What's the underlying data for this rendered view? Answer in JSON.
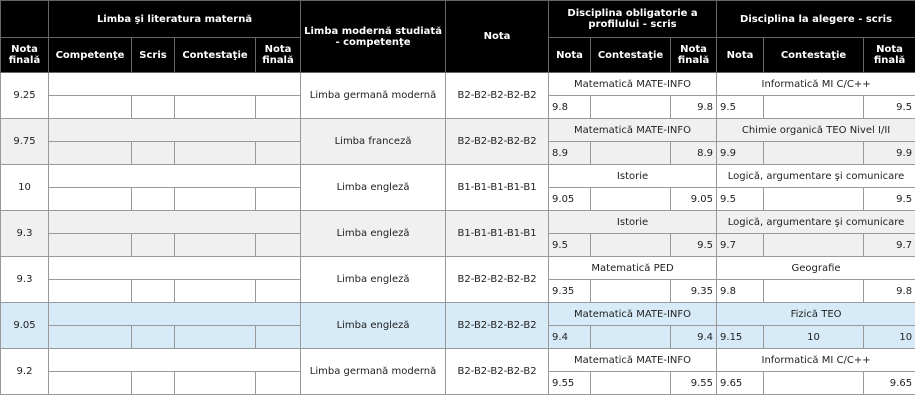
{
  "table": {
    "header": {
      "nota_finala": "Nota finală",
      "materna": "Limba şi literatura maternă",
      "materna_cols": [
        "Competenţe",
        "Scris",
        "Contestaţie",
        "Nota finală"
      ],
      "moderna": "Limba modernă studiată - competenţe",
      "nota": "Nota",
      "obligatorie": "Disciplina obligatorie a profilului - scris",
      "obligatorie_cols": [
        "Nota",
        "Contestaţie",
        "Nota finală"
      ],
      "alegere": "Disciplina la alegere - scris",
      "alegere_cols": [
        "Nota",
        "Contestaţie",
        "Nota finală"
      ]
    },
    "rows": [
      {
        "nota_finala": "9.25",
        "moderna": "Limba germană modernă",
        "nota": "B2-B2-B2-B2-B2",
        "obligatorie": {
          "subject": "Matematică MATE-INFO",
          "nota": "9.8",
          "nota_finala": "9.8"
        },
        "alegere": {
          "subject": "Informatică MI C/C++",
          "nota": "9.5",
          "nota_finala": "9.5"
        }
      },
      {
        "nota_finala": "9.75",
        "moderna": "Limba franceză",
        "nota": "B2-B2-B2-B2-B2",
        "obligatorie": {
          "subject": "Matematică MATE-INFO",
          "nota": "8.9",
          "nota_finala": "8.9"
        },
        "alegere": {
          "subject": "Chimie organică TEO Nivel I/II",
          "nota": "9.9",
          "nota_finala": "9.9"
        }
      },
      {
        "nota_finala": "10",
        "moderna": "Limba engleză",
        "nota": "B1-B1-B1-B1-B1",
        "obligatorie": {
          "subject": "Istorie",
          "nota": "9.05",
          "nota_finala": "9.05"
        },
        "alegere": {
          "subject": "Logică, argumentare şi comunicare",
          "nota": "9.5",
          "nota_finala": "9.5"
        }
      },
      {
        "nota_finala": "9.3",
        "moderna": "Limba engleză",
        "nota": "B1-B1-B1-B1-B1",
        "obligatorie": {
          "subject": "Istorie",
          "nota": "9.5",
          "nota_finala": "9.5"
        },
        "alegere": {
          "subject": "Logică, argumentare şi comunicare",
          "nota": "9.7",
          "nota_finala": "9.7"
        }
      },
      {
        "nota_finala": "9.3",
        "moderna": "Limba engleză",
        "nota": "B2-B2-B2-B2-B2",
        "obligatorie": {
          "subject": "Matematică PED",
          "nota": "9.35",
          "nota_finala": "9.35"
        },
        "alegere": {
          "subject": "Geografie",
          "nota": "9.8",
          "nota_finala": "9.8"
        }
      },
      {
        "nota_finala": "9.05",
        "moderna": "Limba engleză",
        "nota": "B2-B2-B2-B2-B2",
        "obligatorie": {
          "subject": "Matematică MATE-INFO",
          "nota": "9.4",
          "nota_finala": "9.4"
        },
        "alegere": {
          "subject": "Fizică TEO",
          "nota": "9.15",
          "contestatie": "10",
          "nota_finala": "10"
        }
      },
      {
        "nota_finala": "9.2",
        "moderna": "Limba germană modernă",
        "nota": "B2-B2-B2-B2-B2",
        "obligatorie": {
          "subject": "Matematică MATE-INFO",
          "nota": "9.55",
          "nota_finala": "9.55"
        },
        "alegere": {
          "subject": "Informatică MI C/C++",
          "nota": "9.65",
          "nota_finala": "9.65"
        }
      }
    ]
  }
}
